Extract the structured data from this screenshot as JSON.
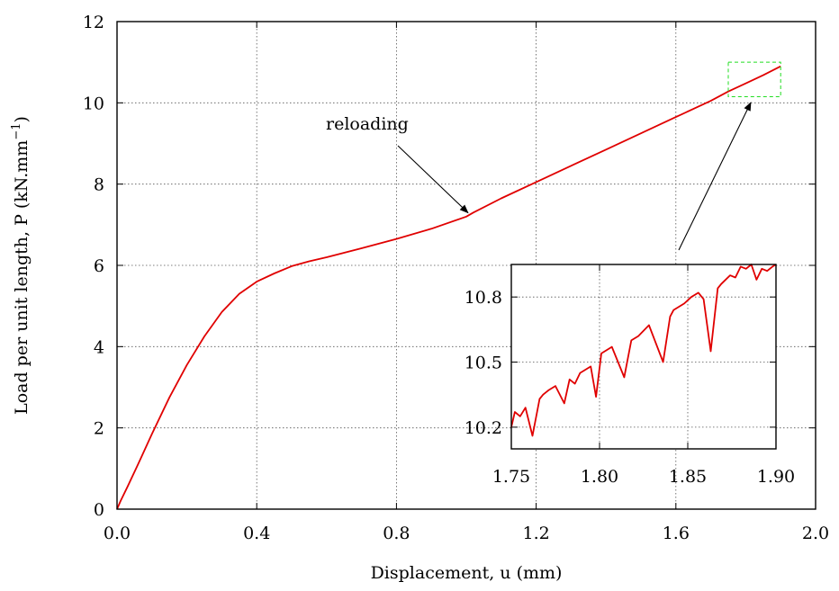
{
  "chart_data": [
    {
      "type": "line",
      "title": "",
      "xlabel": "Displacement, u (mm)",
      "ylabel_main": "Load per unit length, P (kN.mm",
      "ylabel_sup": "−1",
      "ylabel_close": ")",
      "xlim": [
        0,
        2.0
      ],
      "ylim": [
        0,
        12
      ],
      "xticks": [
        "0.0",
        "0.4",
        "0.8",
        "1.2",
        "1.6",
        "2.0"
      ],
      "yticks": [
        "0",
        "2",
        "4",
        "6",
        "8",
        "10",
        "12"
      ],
      "grid": true,
      "series": [
        {
          "color": "#e00000",
          "x": [
            0.0,
            0.01,
            0.03,
            0.06,
            0.1,
            0.15,
            0.2,
            0.25,
            0.3,
            0.35,
            0.4,
            0.45,
            0.5,
            0.55,
            0.6,
            0.7,
            0.8,
            0.9,
            1.0,
            1.02,
            1.1,
            1.2,
            1.3,
            1.4,
            1.5,
            1.6,
            1.7,
            1.75,
            1.8,
            1.85,
            1.9
          ],
          "y": [
            0.0,
            0.2,
            0.55,
            1.1,
            1.85,
            2.75,
            3.55,
            4.25,
            4.85,
            5.3,
            5.6,
            5.8,
            5.98,
            6.1,
            6.2,
            6.42,
            6.65,
            6.9,
            7.2,
            7.3,
            7.65,
            8.05,
            8.45,
            8.85,
            9.25,
            9.65,
            10.05,
            10.28,
            10.48,
            10.68,
            10.9
          ]
        }
      ],
      "annotations": [
        {
          "text": "reloading",
          "x": 1.01,
          "y": 7.25
        }
      ],
      "zoom_region": {
        "x": [
          1.75,
          1.9
        ],
        "y": [
          10.15,
          11.0
        ]
      }
    },
    {
      "type": "line",
      "title": "",
      "inset": true,
      "xlim": [
        1.75,
        1.9
      ],
      "ylim": [
        10.1,
        10.95
      ],
      "xticks": [
        "1.75",
        "1.80",
        "1.85",
        "1.90"
      ],
      "yticks": [
        "10.2",
        "10.5",
        "10.8"
      ],
      "grid": true,
      "series": [
        {
          "color": "#e00000",
          "x": [
            1.75,
            1.752,
            1.755,
            1.758,
            1.762,
            1.766,
            1.768,
            1.771,
            1.775,
            1.78,
            1.783,
            1.786,
            1.789,
            1.795,
            1.798,
            1.801,
            1.807,
            1.814,
            1.818,
            1.822,
            1.828,
            1.836,
            1.84,
            1.842,
            1.848,
            1.852,
            1.856,
            1.859,
            1.863,
            1.867,
            1.869,
            1.874,
            1.877,
            1.88,
            1.883,
            1.886,
            1.889,
            1.892,
            1.895,
            1.898,
            1.9
          ],
          "y": [
            10.2,
            10.27,
            10.25,
            10.29,
            10.16,
            10.33,
            10.35,
            10.37,
            10.39,
            10.31,
            10.42,
            10.4,
            10.45,
            10.48,
            10.34,
            10.54,
            10.57,
            10.43,
            10.6,
            10.62,
            10.67,
            10.5,
            10.71,
            10.74,
            10.77,
            10.8,
            10.82,
            10.79,
            10.55,
            10.84,
            10.86,
            10.9,
            10.89,
            10.94,
            10.93,
            10.95,
            10.88,
            10.93,
            10.92,
            10.94,
            10.95
          ]
        }
      ]
    }
  ]
}
